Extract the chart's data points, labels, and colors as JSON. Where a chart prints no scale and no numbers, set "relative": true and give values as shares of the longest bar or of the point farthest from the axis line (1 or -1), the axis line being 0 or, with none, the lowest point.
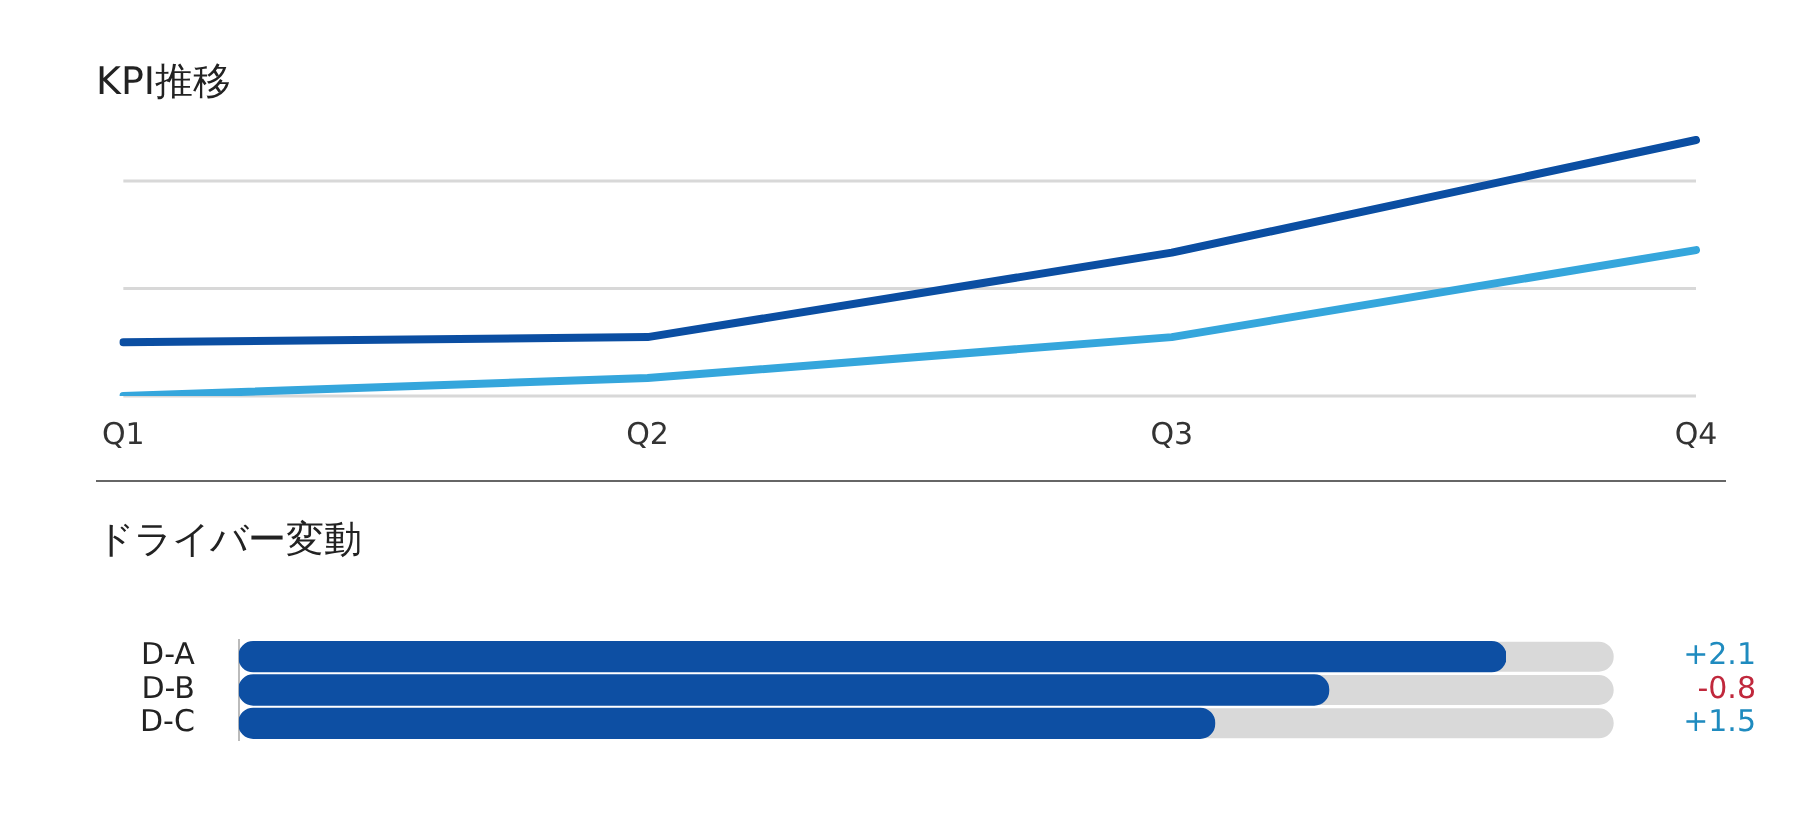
{
  "chart_data": [
    {
      "type": "line",
      "title": "KPI推移",
      "categories": [
        "Q1",
        "Q2",
        "Q3",
        "Q4"
      ],
      "relative": true,
      "tick_labels": "x",
      "ref_lines": [
        {
          "axis": "y",
          "value": 0,
          "color": "#d8d8d8"
        },
        {
          "axis": "y",
          "value": 0.42,
          "color": "#d8d8d8"
        },
        {
          "axis": "y",
          "value": 0.84,
          "color": "#d8d8d8"
        }
      ],
      "series": [
        {
          "color": "#0b4ea2",
          "values": [
            0.21,
            0.23,
            0.56,
            1
          ]
        },
        {
          "color": "#35a6dc",
          "values": [
            0,
            0.07,
            0.23,
            0.57
          ]
        }
      ]
    },
    {
      "type": "bar",
      "orientation": "horizontal",
      "title": "ドライバー変動",
      "categories": [
        "D-A",
        "D-B",
        "D-C"
      ],
      "relative": true,
      "tick_labels": "y",
      "color": "#0d4fa3",
      "values": [
        1,
        0.86,
        0.77
      ],
      "annotations": [
        "+2.1",
        "-0.8",
        "+1.5"
      ]
    }
  ]
}
